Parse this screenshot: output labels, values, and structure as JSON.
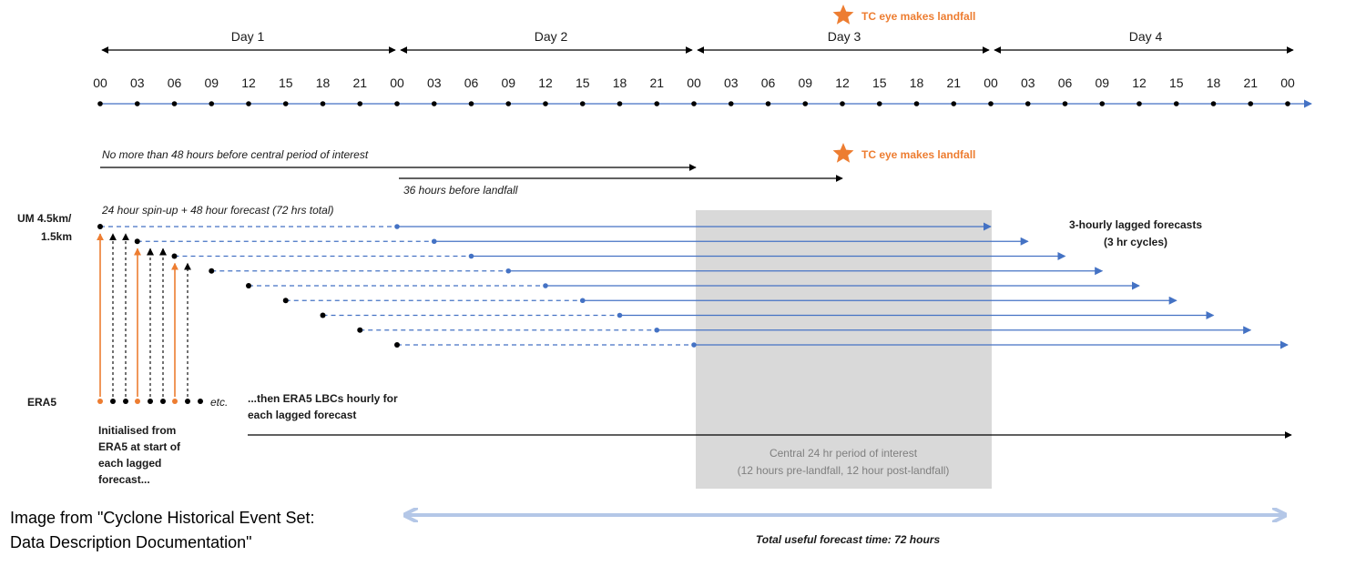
{
  "timeline": {
    "days": [
      "Day 1",
      "Day 2",
      "Day 3",
      "Day 4"
    ],
    "hours": [
      "00",
      "03",
      "06",
      "09",
      "12",
      "15",
      "18",
      "21",
      "00",
      "03",
      "06",
      "09",
      "12",
      "15",
      "18",
      "21",
      "00",
      "03",
      "06",
      "09",
      "12",
      "15",
      "18",
      "21",
      "00",
      "03",
      "06",
      "09",
      "12",
      "15",
      "18",
      "21",
      "00"
    ]
  },
  "landfall_label": "TC eye makes landfall",
  "window_label": "No more  than 48 hours before central  period of interest",
  "before_landfall_label": "36 hours before landfall",
  "spinup_label": "24 hour spin-up + 48 hour forecast  (72 hrs total)",
  "model_label_line1": "UM 4.5km/",
  "model_label_line2": "1.5km",
  "lagged_label_line1": "3-hourly lagged forecasts",
  "lagged_label_line2": "(3 hr cycles)",
  "era5_label": "ERA5",
  "etc_label": "etc.",
  "lbc_line1": "...then ERA5 LBCs hourly for",
  "lbc_line2": "each lagged forecast",
  "init_lines": [
    "Initialised  from",
    "ERA5 at start of",
    "each lagged",
    "forecast..."
  ],
  "period_line1": "Central 24 hr period of interest",
  "period_line2": "(12 hours pre-landfall,  12 hour post-landfall)",
  "total_label": "Total useful forecast time: 72 hours",
  "source_line1": "Image from \"Cyclone Historical Event Set:",
  "source_line2": "Data Description Documentation\"",
  "colors": {
    "blue": "#4472c4",
    "orange": "#ed7d31",
    "grey_box": "#d9d9d9",
    "light_blue": "#b4c7e7",
    "black": "#000000"
  }
}
